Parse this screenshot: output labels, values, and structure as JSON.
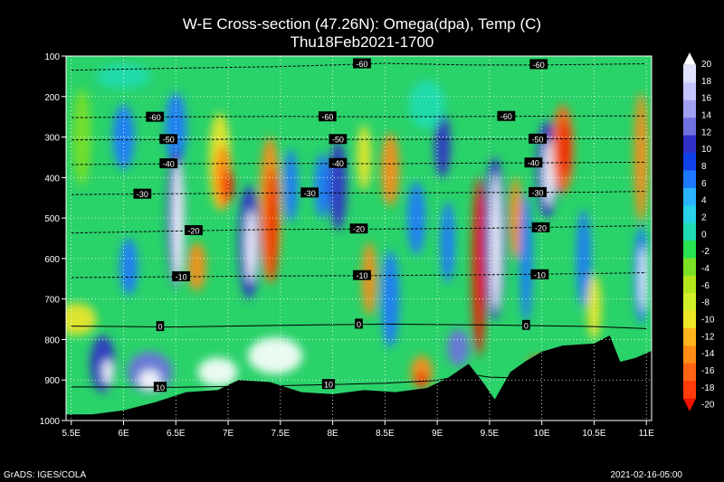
{
  "title_line1": "W-E Cross-section (47.26N): Omega(dpa), Temp (C)",
  "title_line2": "Thu18Feb2021-1700",
  "footer_left": "GrADS: IGES/COLA",
  "footer_right": "2021-02-16-05:00",
  "chart_data": {
    "type": "heatmap",
    "title": "W-E Cross-section (47.26N): Omega(dpa), Temp (C)",
    "subtitle": "Thu18Feb2021-1700",
    "x_ticks": [
      "5.5E",
      "6E",
      "6.5E",
      "7E",
      "7.5E",
      "8E",
      "8.5E",
      "9E",
      "9.5E",
      "10E",
      "10.5E",
      "11E"
    ],
    "x_tick_values": [
      5.5,
      6,
      6.5,
      7,
      7.5,
      8,
      8.5,
      9,
      9.5,
      10,
      10.5,
      11
    ],
    "xlim": [
      5.45,
      11.05
    ],
    "y_ticks": [
      "100",
      "200",
      "300",
      "400",
      "500",
      "600",
      "700",
      "800",
      "900",
      "1000"
    ],
    "y_tick_values": [
      100,
      200,
      300,
      400,
      500,
      600,
      700,
      800,
      900,
      1000
    ],
    "ylim": [
      100,
      1000
    ],
    "y_inverted": true,
    "colorbar": {
      "labels": [
        "20",
        "18",
        "16",
        "14",
        "12",
        "10",
        "8",
        "6",
        "4",
        "2",
        "0",
        "-2",
        "-4",
        "-6",
        "-8",
        "-10",
        "-12",
        "-14",
        "-16",
        "-18",
        "-20"
      ],
      "colors": [
        "#ffffff",
        "#e0e0ff",
        "#c4c4ff",
        "#a0a0f0",
        "#7070e0",
        "#3030c8",
        "#1040e8",
        "#1e78ff",
        "#2ab4ff",
        "#28d2e8",
        "#20dcb4",
        "#28e050",
        "#7ce024",
        "#b4e61e",
        "#d2f028",
        "#f0e628",
        "#ffb41e",
        "#ff8c14",
        "#ff6414",
        "#ff3c0a",
        "#f01400"
      ]
    },
    "temperature_contours": [
      {
        "value": -60,
        "points": [
          [
            5.5,
            135
          ],
          [
            6.5,
            130
          ],
          [
            7.5,
            126
          ],
          [
            8.5,
            118
          ],
          [
            9.3,
            122
          ],
          [
            10,
            122
          ],
          [
            11,
            119
          ]
        ],
        "labels": [
          [
            8.28,
            119
          ],
          [
            9.97,
            121
          ]
        ]
      },
      {
        "value": -60,
        "points": [
          [
            5.5,
            252
          ],
          [
            6.5,
            250
          ],
          [
            7.5,
            249
          ],
          [
            8.5,
            250
          ],
          [
            9.5,
            249
          ],
          [
            10.5,
            248
          ],
          [
            11,
            248
          ]
        ],
        "labels": [
          [
            6.3,
            251
          ],
          [
            7.95,
            250
          ],
          [
            9.66,
            249
          ]
        ]
      },
      {
        "value": -50,
        "points": [
          [
            5.5,
            307
          ],
          [
            6.5,
            306
          ],
          [
            7.5,
            305
          ],
          [
            8.5,
            306
          ],
          [
            9.5,
            305
          ],
          [
            10.5,
            304
          ],
          [
            11,
            304
          ]
        ],
        "labels": [
          [
            6.43,
            306
          ],
          [
            8.05,
            306
          ],
          [
            9.96,
            305
          ]
        ]
      },
      {
        "value": -40,
        "points": [
          [
            5.5,
            368
          ],
          [
            6.5,
            366
          ],
          [
            7.5,
            365
          ],
          [
            8.5,
            366
          ],
          [
            9.5,
            364
          ],
          [
            10.5,
            363
          ],
          [
            11,
            362
          ]
        ],
        "labels": [
          [
            6.43,
            366
          ],
          [
            8.05,
            365
          ],
          [
            9.92,
            364
          ]
        ]
      },
      {
        "value": -30,
        "points": [
          [
            5.5,
            442
          ],
          [
            6.5,
            440
          ],
          [
            7.5,
            438
          ],
          [
            8.5,
            438
          ],
          [
            9.5,
            437
          ],
          [
            10.5,
            436
          ],
          [
            11,
            434
          ]
        ],
        "labels": [
          [
            6.18,
            441
          ],
          [
            7.78,
            438
          ],
          [
            9.96,
            437
          ]
        ]
      },
      {
        "value": -20,
        "points": [
          [
            5.5,
            537
          ],
          [
            6.5,
            532
          ],
          [
            7.5,
            528
          ],
          [
            8.5,
            527
          ],
          [
            9.5,
            525
          ],
          [
            10.5,
            521
          ],
          [
            11,
            519
          ]
        ],
        "labels": [
          [
            6.67,
            531
          ],
          [
            8.25,
            527
          ],
          [
            9.99,
            524
          ]
        ]
      },
      {
        "value": -10,
        "points": [
          [
            5.5,
            647
          ],
          [
            6.5,
            645
          ],
          [
            7.5,
            643
          ],
          [
            8.5,
            642
          ],
          [
            9.5,
            640
          ],
          [
            10.5,
            637
          ],
          [
            11,
            635
          ]
        ],
        "labels": [
          [
            6.55,
            645
          ],
          [
            8.28,
            642
          ],
          [
            9.98,
            640
          ]
        ]
      },
      {
        "value": 0,
        "points": [
          [
            5.5,
            767
          ],
          [
            6.5,
            769
          ],
          [
            7.5,
            765
          ],
          [
            8.5,
            762
          ],
          [
            9.5,
            764
          ],
          [
            10.5,
            768
          ],
          [
            11,
            773
          ]
        ],
        "labels": [
          [
            6.35,
            768
          ],
          [
            8.25,
            762
          ],
          [
            9.85,
            765
          ]
        ]
      },
      {
        "value": 10,
        "points": [
          [
            5.5,
            917
          ],
          [
            6.5,
            918
          ],
          [
            7.5,
            914
          ],
          [
            8.5,
            908
          ],
          [
            9,
            901
          ],
          [
            9.3,
            885
          ],
          [
            9.5,
            893
          ],
          [
            10,
            896
          ],
          [
            10.5,
            885
          ],
          [
            11,
            880
          ]
        ],
        "labels": [
          [
            6.35,
            918
          ],
          [
            7.96,
            911
          ]
        ]
      }
    ],
    "terrain": [
      [
        5.45,
        985
      ],
      [
        5.7,
        985
      ],
      [
        6.0,
        975
      ],
      [
        6.3,
        955
      ],
      [
        6.6,
        930
      ],
      [
        6.9,
        925
      ],
      [
        7.1,
        900
      ],
      [
        7.4,
        905
      ],
      [
        7.7,
        930
      ],
      [
        8.0,
        935
      ],
      [
        8.3,
        925
      ],
      [
        8.6,
        930
      ],
      [
        8.9,
        920
      ],
      [
        9.1,
        895
      ],
      [
        9.3,
        860
      ],
      [
        9.45,
        910
      ],
      [
        9.55,
        948
      ],
      [
        9.7,
        880
      ],
      [
        9.85,
        853
      ],
      [
        10.0,
        830
      ],
      [
        10.2,
        815
      ],
      [
        10.5,
        810
      ],
      [
        10.65,
        790
      ],
      [
        10.75,
        855
      ],
      [
        10.9,
        845
      ],
      [
        11.05,
        828
      ]
    ]
  }
}
